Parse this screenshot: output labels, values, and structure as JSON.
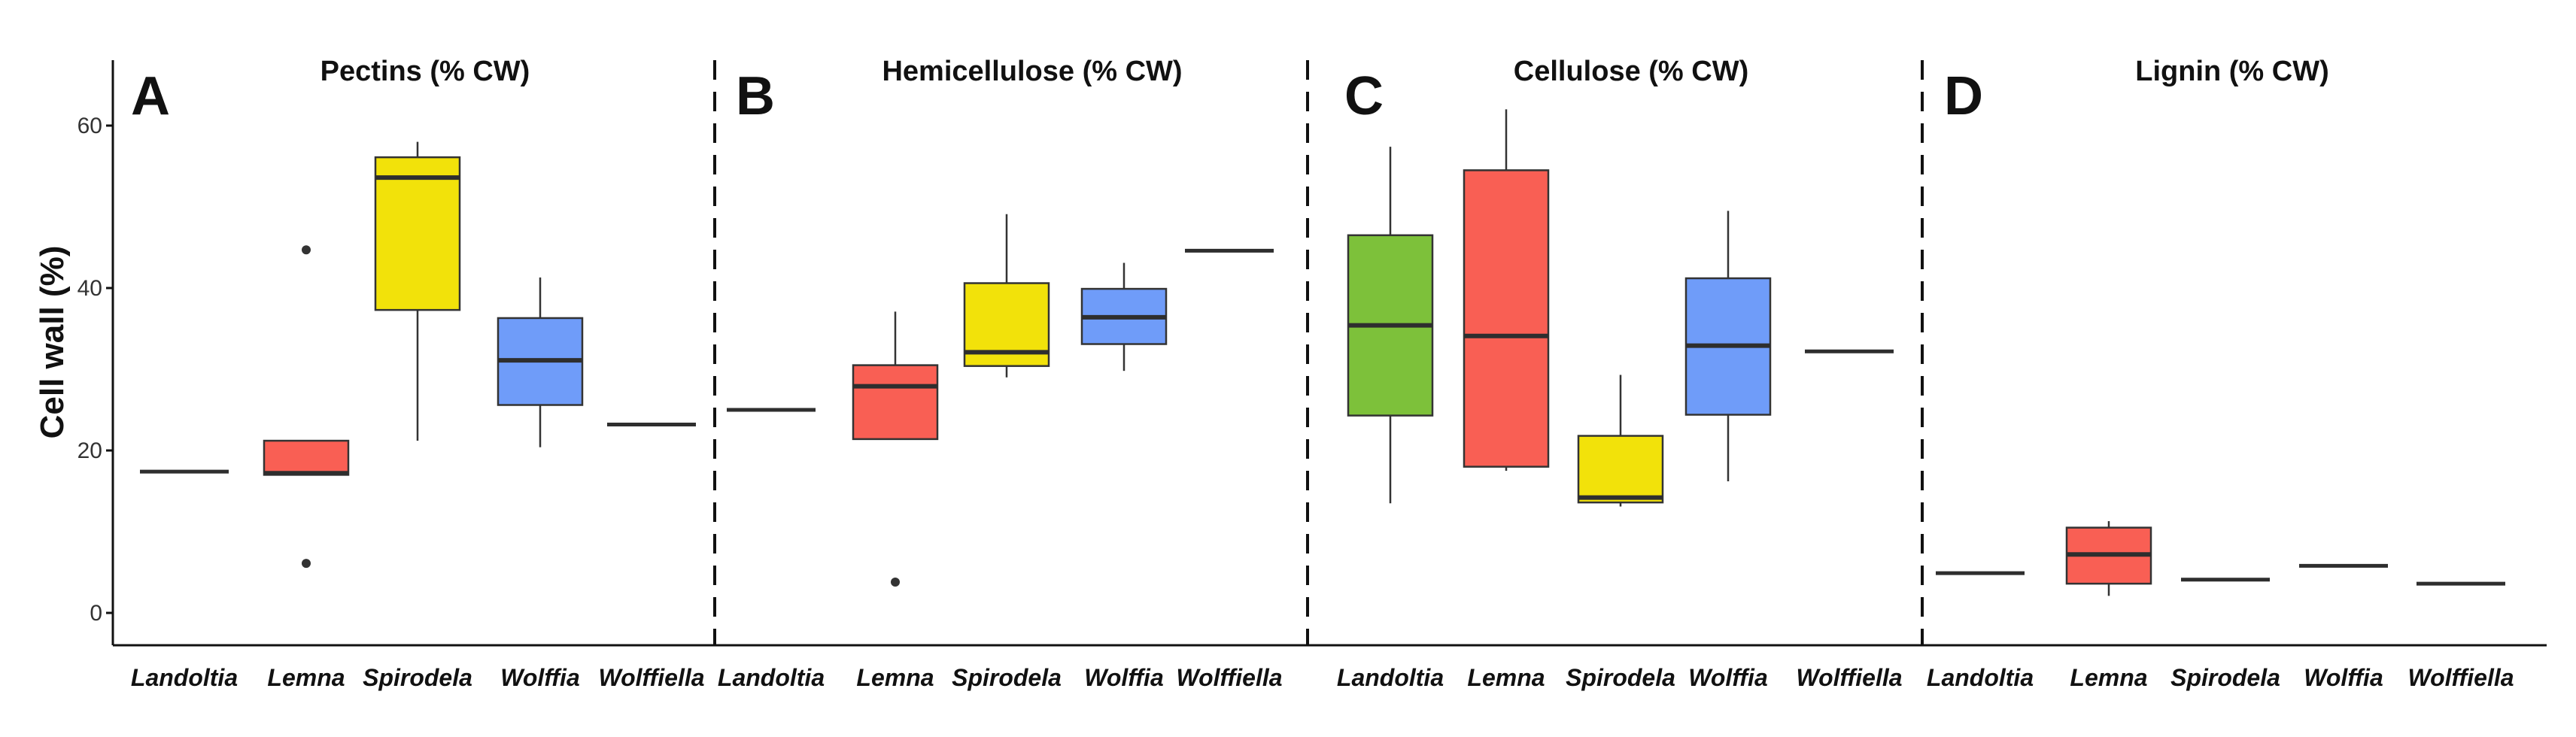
{
  "chart_data": {
    "type": "boxplot",
    "ylabel": "Cell wall (%)",
    "ylim": [
      -4,
      67
    ],
    "yticks": [
      0,
      20,
      40,
      60
    ],
    "grid": false,
    "categories": [
      "Landoltia",
      "Lemna",
      "Spirodela",
      "Wolffia",
      "Wolffiella"
    ],
    "colors": {
      "Landoltia": "#7dc13a",
      "Lemna": "#f95f54",
      "Spirodela": "#f2e20a",
      "Wolffia": "#6f9cf9",
      "Wolffiella": "#ffffff"
    },
    "panels": [
      {
        "letter": "A",
        "title": "Pectins (% CW)",
        "boxes": [
          {
            "category": "Landoltia",
            "min": 17.4,
            "q1": 17.4,
            "median": 17.4,
            "q3": 17.4,
            "max": 17.4,
            "outliers": []
          },
          {
            "category": "Lemna",
            "min": 17.0,
            "q1": 17.0,
            "median": 17.2,
            "q3": 21.2,
            "max": 21.2,
            "outliers": [
              44.7,
              6.1
            ]
          },
          {
            "category": "Spirodela",
            "min": 21.2,
            "q1": 37.3,
            "median": 53.6,
            "q3": 56.1,
            "max": 58.0,
            "outliers": []
          },
          {
            "category": "Wolffia",
            "min": 20.4,
            "q1": 25.6,
            "median": 31.1,
            "q3": 36.3,
            "max": 41.3,
            "outliers": []
          },
          {
            "category": "Wolffiella",
            "min": 23.2,
            "q1": 23.2,
            "median": 23.2,
            "q3": 23.2,
            "max": 23.2,
            "outliers": []
          }
        ]
      },
      {
        "letter": "B",
        "title": "Hemicellulose (% CW)",
        "boxes": [
          {
            "category": "Landoltia",
            "min": 25.0,
            "q1": 25.0,
            "median": 25.0,
            "q3": 25.0,
            "max": 25.0,
            "outliers": []
          },
          {
            "category": "Lemna",
            "min": 21.4,
            "q1": 21.4,
            "median": 27.9,
            "q3": 30.5,
            "max": 37.1,
            "outliers": [
              3.8
            ]
          },
          {
            "category": "Spirodela",
            "min": 29.0,
            "q1": 30.4,
            "median": 32.1,
            "q3": 40.6,
            "max": 49.1,
            "outliers": []
          },
          {
            "category": "Wolffia",
            "min": 29.8,
            "q1": 33.1,
            "median": 36.4,
            "q3": 39.9,
            "max": 43.1,
            "outliers": []
          },
          {
            "category": "Wolffiella",
            "min": 44.6,
            "q1": 44.6,
            "median": 44.6,
            "q3": 44.6,
            "max": 44.6,
            "outliers": []
          }
        ]
      },
      {
        "letter": "C",
        "title": "Cellulose (% CW)",
        "boxes": [
          {
            "category": "Landoltia",
            "min": 13.5,
            "q1": 24.3,
            "median": 35.4,
            "q3": 46.5,
            "max": 57.4,
            "outliers": []
          },
          {
            "category": "Lemna",
            "min": 17.5,
            "q1": 18.0,
            "median": 34.1,
            "q3": 54.5,
            "max": 62.0,
            "outliers": []
          },
          {
            "category": "Spirodela",
            "min": 13.1,
            "q1": 13.6,
            "median": 14.2,
            "q3": 21.8,
            "max": 29.3,
            "outliers": []
          },
          {
            "category": "Wolffia",
            "min": 16.2,
            "q1": 24.4,
            "median": 32.9,
            "q3": 41.2,
            "max": 49.5,
            "outliers": []
          },
          {
            "category": "Wolffiella",
            "min": 32.2,
            "q1": 32.2,
            "median": 32.2,
            "q3": 32.2,
            "max": 32.2,
            "outliers": []
          }
        ]
      },
      {
        "letter": "D",
        "title": "Lignin (% CW)",
        "boxes": [
          {
            "category": "Landoltia",
            "min": 4.9,
            "q1": 4.9,
            "median": 4.9,
            "q3": 4.9,
            "max": 4.9,
            "outliers": []
          },
          {
            "category": "Lemna",
            "min": 2.1,
            "q1": 3.6,
            "median": 7.2,
            "q3": 10.5,
            "max": 11.3,
            "outliers": []
          },
          {
            "category": "Spirodela",
            "min": 4.1,
            "q1": 4.1,
            "median": 4.1,
            "q3": 4.1,
            "max": 4.1,
            "outliers": []
          },
          {
            "category": "Wolffia",
            "min": 5.8,
            "q1": 5.8,
            "median": 5.8,
            "q3": 5.8,
            "max": 5.8,
            "outliers": []
          },
          {
            "category": "Wolffiella",
            "min": 3.6,
            "q1": 3.6,
            "median": 3.6,
            "q3": 3.6,
            "max": 3.6,
            "outliers": []
          }
        ]
      }
    ]
  }
}
